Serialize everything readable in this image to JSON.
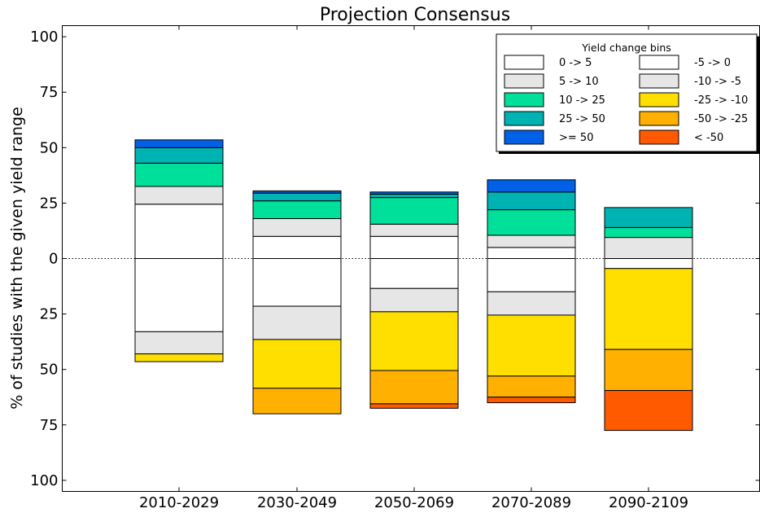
{
  "chart_data": {
    "type": "bar",
    "title": "Projection Consensus",
    "ylabel": "% of studies with the given yield range",
    "xlabel": "",
    "categories": [
      "2010-2029",
      "2030-2049",
      "2050-2069",
      "2070-2089",
      "2090-2109"
    ],
    "ylim": [
      -105,
      105
    ],
    "y_ticks": [
      {
        "value": 100,
        "label": "100"
      },
      {
        "value": 75,
        "label": "75"
      },
      {
        "value": 50,
        "label": "50"
      },
      {
        "value": 25,
        "label": "25"
      },
      {
        "value": 0,
        "label": "0"
      },
      {
        "value": -25,
        "label": "25"
      },
      {
        "value": -50,
        "label": "50"
      },
      {
        "value": -75,
        "label": "75"
      },
      {
        "value": -100,
        "label": "100"
      }
    ],
    "zero_line": "dotted",
    "legend_title": "Yield change bins",
    "legend_position": "top-right",
    "positive_bins": [
      {
        "label": "0 -> 5",
        "color": "#ffffff"
      },
      {
        "label": "5 -> 10",
        "color": "#e6e6e6"
      },
      {
        "label": "10 -> 25",
        "color": "#00e09b"
      },
      {
        "label": "25 -> 50",
        "color": "#00b3b3"
      },
      {
        "label": ">= 50",
        "color": "#0060e6"
      }
    ],
    "negative_bins": [
      {
        "label": "-5 -> 0",
        "color": "#ffffff"
      },
      {
        "label": "-10 -> -5",
        "color": "#e6e6e6"
      },
      {
        "label": "-25 -> -10",
        "color": "#ffdf00"
      },
      {
        "label": "-50 -> -25",
        "color": "#ffb000"
      },
      {
        "label": "< -50",
        "color": "#ff5a00"
      }
    ],
    "positive_values": [
      [
        24.5,
        8,
        10.5,
        7,
        3.5
      ],
      [
        10,
        8,
        8,
        3.5,
        1
      ],
      [
        10,
        5.5,
        12,
        1.5,
        1
      ],
      [
        5,
        5.5,
        11.5,
        8,
        5.5
      ],
      [
        0,
        9.5,
        4.5,
        9,
        0
      ]
    ],
    "negative_values": [
      [
        33,
        10,
        3.5,
        0,
        0
      ],
      [
        21.5,
        15,
        22,
        11.5,
        0
      ],
      [
        13.5,
        10.5,
        26.5,
        15,
        2
      ],
      [
        15,
        10.5,
        27.5,
        9.5,
        2.5
      ],
      [
        4.5,
        0,
        36.5,
        18.5,
        18
      ]
    ]
  }
}
